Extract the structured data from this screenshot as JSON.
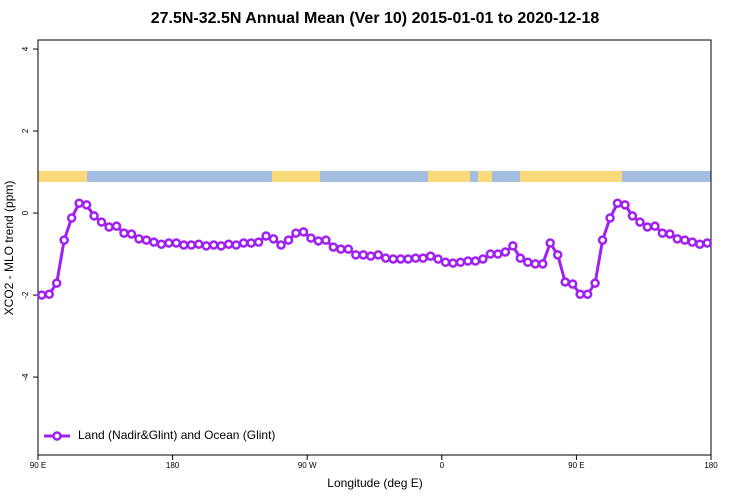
{
  "chart_data": {
    "type": "line",
    "title": "27.5N-32.5N Annual Mean (Ver 10)   2015-01-01 to 2020-12-18",
    "x_label": "Longitude (deg E)",
    "y_label": "XCO2 - MLO trend (ppm)",
    "xlim": [
      90,
      540
    ],
    "ylim": [
      -5.9,
      4.22
    ],
    "xticks": [
      {
        "value": 90,
        "label": "90 E"
      },
      180,
      {
        "value": 270,
        "label": "90 W"
      },
      {
        "value": 360,
        "label": "0"
      },
      {
        "value": 450,
        "label": "90 E"
      },
      {
        "value": 540,
        "label": "180"
      }
    ],
    "yticks": [
      -4,
      -2,
      0,
      2,
      4
    ],
    "legend": "bottomleft",
    "x": [
      92.5,
      97.5,
      102.5,
      107.5,
      112.5,
      117.5,
      122.5,
      127.5,
      132.5,
      137.5,
      142.5,
      147.5,
      152.5,
      157.5,
      162.5,
      167.5,
      172.5,
      177.5,
      182.5,
      187.5,
      192.5,
      197.5,
      202.5,
      207.5,
      212.5,
      217.5,
      222.5,
      227.5,
      232.5,
      237.5,
      242.5,
      247.5,
      252.5,
      257.5,
      262.5,
      267.5,
      272.5,
      277.5,
      282.5,
      287.5,
      292.5,
      297.5,
      302.5,
      307.5,
      312.5,
      317.5,
      322.5,
      327.5,
      332.5,
      337.5,
      342.5,
      347.5,
      352.5,
      357.5,
      362.5,
      367.5,
      372.5,
      377.5,
      382.5,
      387.5,
      392.5,
      397.5,
      402.5,
      407.5,
      412.5,
      417.5,
      422.5,
      427.5,
      432.5,
      437.5,
      442.5,
      447.5,
      452.5,
      457.5,
      462.5,
      467.5,
      472.5,
      477.5,
      482.5,
      487.5,
      492.5,
      497.5,
      502.5,
      507.5,
      512.5,
      517.5,
      522.5,
      527.5,
      532.5,
      537.5
    ],
    "series": [
      {
        "name": "Land (Nadir&Glint) and Ocean (Glint)",
        "color": "#a020f0",
        "values": [
          -2.0,
          -1.98,
          -1.71,
          -0.66,
          -0.12,
          0.24,
          0.2,
          -0.07,
          -0.22,
          -0.34,
          -0.32,
          -0.49,
          -0.51,
          -0.63,
          -0.66,
          -0.71,
          -0.76,
          -0.73,
          -0.73,
          -0.78,
          -0.78,
          -0.76,
          -0.8,
          -0.78,
          -0.8,
          -0.76,
          -0.78,
          -0.73,
          -0.73,
          -0.71,
          -0.56,
          -0.63,
          -0.78,
          -0.66,
          -0.49,
          -0.46,
          -0.61,
          -0.68,
          -0.66,
          -0.83,
          -0.88,
          -0.88,
          -1.02,
          -1.02,
          -1.05,
          -1.02,
          -1.1,
          -1.12,
          -1.12,
          -1.12,
          -1.1,
          -1.1,
          -1.05,
          -1.12,
          -1.2,
          -1.22,
          -1.2,
          -1.17,
          -1.17,
          -1.12,
          -1.0,
          -1.0,
          -0.95,
          -0.8,
          -1.1,
          -1.2,
          -1.24,
          -1.24,
          -0.73,
          -1.02,
          -1.68,
          -1.73,
          -1.98,
          -1.98,
          -1.71,
          -0.66,
          -0.12,
          0.24,
          0.2,
          -0.07,
          -0.22,
          -0.34,
          -0.32,
          -0.49,
          -0.51,
          -0.63,
          -0.66,
          -0.71,
          -0.76,
          -0.73
        ]
      }
    ]
  }
}
